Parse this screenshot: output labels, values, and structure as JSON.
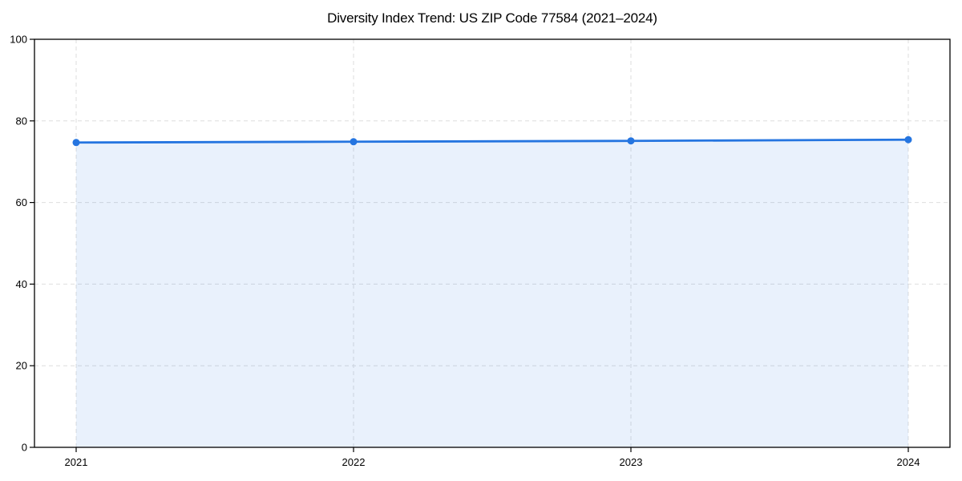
{
  "page": {
    "background": "#ffffff"
  },
  "chart_data": {
    "type": "line",
    "title": "Diversity Index Trend: US ZIP Code 77584 (2021–2024)",
    "x": [
      2021,
      2022,
      2023,
      2024
    ],
    "xticks": [
      "2021",
      "2022",
      "2023",
      "2024"
    ],
    "series": [
      {
        "name": "Diversity Index",
        "values": [
          74.7,
          74.9,
          75.1,
          75.4
        ]
      }
    ],
    "xlabel": "",
    "ylabel": "",
    "ylim": [
      0,
      100
    ],
    "yticks": [
      0,
      20,
      40,
      60,
      80,
      100
    ],
    "grid": {
      "visible": true,
      "style": "dashed",
      "color": "#dedede"
    },
    "legend": {
      "visible": false
    },
    "area_fill": true,
    "marker": {
      "shape": "circle",
      "radius": 4.5
    },
    "line_width": 2.8,
    "colors": {
      "line": "#2575e0",
      "marker": "#2575e0",
      "fill": "#2575e0",
      "fill_opacity": 0.1,
      "axis": "#000000",
      "tick_label": "#000000",
      "title": "#000000"
    }
  }
}
